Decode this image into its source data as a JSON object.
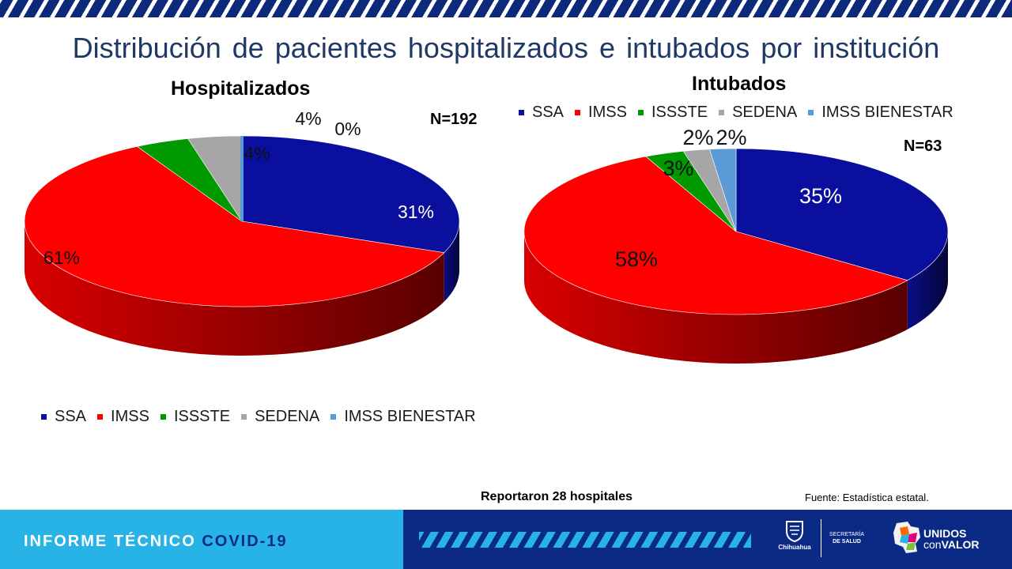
{
  "title": "Distribución de pacientes hospitalizados e intubados por institución",
  "colors": {
    "SSA": "#0b0f9e",
    "IMSS": "#ff0000",
    "ISSSTE": "#009a00",
    "SEDENA": "#a6a6a6",
    "IMSS BIENESTAR": "#5b9bd5"
  },
  "chart_data": [
    {
      "type": "pie",
      "title": "Hospitalizados",
      "n_label": "N=192",
      "categories": [
        "SSA",
        "IMSS",
        "ISSSTE",
        "SEDENA",
        "IMSS BIENESTAR"
      ],
      "values": [
        31,
        61,
        4,
        4,
        0
      ],
      "data_labels": [
        "31%",
        "61%",
        "4%",
        "4%",
        "0%"
      ],
      "legend_position": "bottom"
    },
    {
      "type": "pie",
      "title": "Intubados",
      "n_label": "N=63",
      "categories": [
        "SSA",
        "IMSS",
        "ISSSTE",
        "SEDENA",
        "IMSS BIENESTAR"
      ],
      "values": [
        35,
        58,
        3,
        2,
        2
      ],
      "data_labels": [
        "35%",
        "58%",
        "3%",
        "2%",
        "2%"
      ],
      "legend_position": "top"
    }
  ],
  "footnotes": {
    "hospitals": "Reportaron 28 hospitales",
    "source": "Fuente: Estadística estatal."
  },
  "footer": {
    "report_label": "INFORME TÉCNICO",
    "report_accent": "COVID-19",
    "logo_chihuahua": "Chihuahua",
    "logo_secretaria_1": "SECRETARÍA",
    "logo_secretaria_2": "DE SALUD",
    "logo_unidos_1": "UNIDOS",
    "logo_unidos_2": "con",
    "logo_unidos_3": "VALOR"
  }
}
